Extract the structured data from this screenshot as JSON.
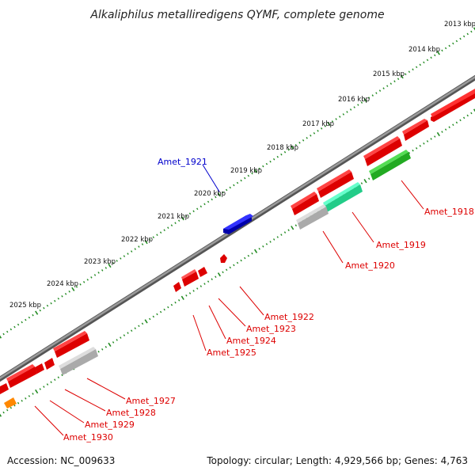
{
  "title": "Alkaliphilus metalliredigens QYMF, complete genome",
  "footer": {
    "accession": "Accession: NC_009633",
    "summary": "Topology: circular; Length: 4,929,566 bp; Genes: 4,763"
  },
  "tick_labels": [
    "2013 kbp",
    "2014 kbp",
    "2015 kbp",
    "2016 kbp",
    "2017 kbp",
    "2018 kbp",
    "2019 kbp",
    "2020 kbp",
    "2021 kbp",
    "2022 kbp",
    "2023 kbp",
    "2024 kbp",
    "2025 kbp"
  ],
  "gene_labels": [
    "Amet_1921",
    "Amet_1918",
    "Amet_1919",
    "Amet_1920",
    "Amet_1922",
    "Amet_1923",
    "Amet_1924",
    "Amet_1925",
    "Amet_1927",
    "Amet_1928",
    "Amet_1929",
    "Amet_1930"
  ],
  "colors": {
    "backbone": "#7a7a7a",
    "tick_green": "#228b22",
    "gene_red": "#ff0000",
    "gene_blue": "#0000cc",
    "gene_green": "#33bb33",
    "gene_cyan": "#33eeaa",
    "gene_gray": "#bbbbbb",
    "gene_orange": "#ff8800",
    "label_red": "#dd0000",
    "label_blue": "#0000cc"
  }
}
